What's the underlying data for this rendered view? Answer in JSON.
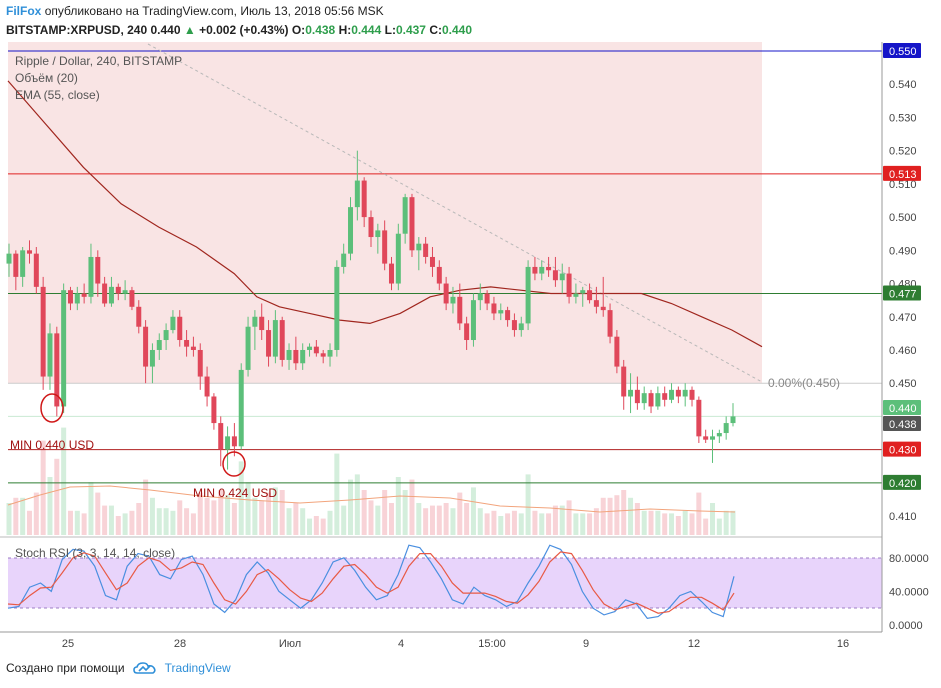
{
  "header": {
    "brand": "FilFox",
    "published": "опубликовано на TradingView.com, Июль 13, 2018 05:56 MSK",
    "symbol": "BITSTAMP:XRPUSD, 240",
    "last": "0.440",
    "change_arrow": "▲",
    "change": "+0.002 (+0.43%)",
    "o_label": "O:",
    "o": "0.438",
    "h_label": "H:",
    "h": "0.444",
    "l_label": "L:",
    "l": "0.437",
    "c_label": "C:",
    "c": "0.440"
  },
  "legend": {
    "title": "Ripple / Dollar, 240, BITSTAMP",
    "volume": "Объём (20)",
    "ema": "EMA (55, close)"
  },
  "annotations": {
    "min1": "MIN 0.440 USD",
    "min2": "MIN 0.424 USD",
    "fib": "0.00%(0.450)"
  },
  "price_badges": [
    {
      "text": "0.550",
      "value": 0.55,
      "color": "#1515c8"
    },
    {
      "text": "0.513",
      "value": 0.513,
      "color": "#e02020"
    },
    {
      "text": "0.477",
      "value": 0.477,
      "color": "#2e7d32"
    },
    {
      "text": "0.440",
      "value": 0.44,
      "color": "#5cbf7a"
    },
    {
      "text": "0.438",
      "value": 0.438,
      "color": "#555555"
    },
    {
      "text": "0.430",
      "value": 0.43,
      "color": "#e02020"
    },
    {
      "text": "0.420",
      "value": 0.42,
      "color": "#2e7d32"
    }
  ],
  "price_axis_ticks": [
    "0.540",
    "0.530",
    "0.520",
    "0.510",
    "0.500",
    "0.490",
    "0.480",
    "0.470",
    "0.460",
    "0.450",
    "0.410"
  ],
  "rsi": {
    "label": "Stoch RSI (3, 3, 14, 14, close)",
    "ticks": [
      "80.0000",
      "40.0000",
      "0.0000"
    ]
  },
  "time_axis": [
    "25",
    "28",
    "Июл",
    "4",
    "15:00",
    "9",
    "12",
    "16"
  ],
  "footer": {
    "created": "Создано при помощи",
    "tv": "TradingView",
    "logo_icon": "tradingview-cloud-icon"
  },
  "colors": {
    "up": "#5cbf7a",
    "down": "#e0475a",
    "ema": "#a0261e",
    "zone": "#f9e4e4",
    "rsi_band": "#e8d4fb",
    "rsi_k": "#4a8fe0",
    "rsi_d": "#e85a45"
  },
  "chart_data": {
    "type": "candlestick",
    "title": "Ripple / Dollar, 240, BITSTAMP",
    "ylim": [
      0.4,
      0.555
    ],
    "ohlc": [
      [
        0.486,
        0.492,
        0.482,
        0.489
      ],
      [
        0.489,
        0.49,
        0.478,
        0.482
      ],
      [
        0.482,
        0.491,
        0.479,
        0.49
      ],
      [
        0.49,
        0.493,
        0.486,
        0.489
      ],
      [
        0.489,
        0.491,
        0.477,
        0.479
      ],
      [
        0.479,
        0.482,
        0.448,
        0.452
      ],
      [
        0.452,
        0.468,
        0.448,
        0.465
      ],
      [
        0.465,
        0.467,
        0.44,
        0.443
      ],
      [
        0.443,
        0.48,
        0.441,
        0.478
      ],
      [
        0.478,
        0.479,
        0.472,
        0.474
      ],
      [
        0.474,
        0.479,
        0.472,
        0.477
      ],
      [
        0.477,
        0.48,
        0.474,
        0.476
      ],
      [
        0.476,
        0.492,
        0.474,
        0.488
      ],
      [
        0.488,
        0.49,
        0.476,
        0.48
      ],
      [
        0.48,
        0.482,
        0.473,
        0.474
      ],
      [
        0.474,
        0.482,
        0.473,
        0.479
      ],
      [
        0.479,
        0.48,
        0.475,
        0.477
      ],
      [
        0.477,
        0.481,
        0.475,
        0.478
      ],
      [
        0.478,
        0.479,
        0.472,
        0.473
      ],
      [
        0.473,
        0.475,
        0.465,
        0.467
      ],
      [
        0.467,
        0.469,
        0.45,
        0.455
      ],
      [
        0.455,
        0.462,
        0.45,
        0.46
      ],
      [
        0.46,
        0.465,
        0.457,
        0.463
      ],
      [
        0.463,
        0.468,
        0.46,
        0.466
      ],
      [
        0.466,
        0.472,
        0.465,
        0.47
      ],
      [
        0.47,
        0.472,
        0.461,
        0.463
      ],
      [
        0.463,
        0.466,
        0.458,
        0.461
      ],
      [
        0.461,
        0.464,
        0.458,
        0.46
      ],
      [
        0.46,
        0.462,
        0.448,
        0.452
      ],
      [
        0.452,
        0.455,
        0.443,
        0.446
      ],
      [
        0.446,
        0.447,
        0.436,
        0.438
      ],
      [
        0.438,
        0.44,
        0.425,
        0.43
      ],
      [
        0.43,
        0.437,
        0.424,
        0.434
      ],
      [
        0.434,
        0.438,
        0.428,
        0.431
      ],
      [
        0.431,
        0.456,
        0.43,
        0.454
      ],
      [
        0.454,
        0.47,
        0.452,
        0.467
      ],
      [
        0.467,
        0.472,
        0.46,
        0.47
      ],
      [
        0.47,
        0.474,
        0.463,
        0.466
      ],
      [
        0.466,
        0.469,
        0.455,
        0.458
      ],
      [
        0.458,
        0.472,
        0.456,
        0.469
      ],
      [
        0.469,
        0.47,
        0.455,
        0.457
      ],
      [
        0.457,
        0.462,
        0.454,
        0.46
      ],
      [
        0.46,
        0.464,
        0.454,
        0.456
      ],
      [
        0.456,
        0.462,
        0.454,
        0.46
      ],
      [
        0.46,
        0.462,
        0.458,
        0.461
      ],
      [
        0.461,
        0.463,
        0.458,
        0.459
      ],
      [
        0.459,
        0.46,
        0.456,
        0.458
      ],
      [
        0.458,
        0.462,
        0.455,
        0.46
      ],
      [
        0.46,
        0.487,
        0.458,
        0.485
      ],
      [
        0.485,
        0.492,
        0.483,
        0.489
      ],
      [
        0.489,
        0.506,
        0.487,
        0.503
      ],
      [
        0.503,
        0.52,
        0.499,
        0.511
      ],
      [
        0.511,
        0.512,
        0.497,
        0.5
      ],
      [
        0.5,
        0.502,
        0.491,
        0.494
      ],
      [
        0.494,
        0.498,
        0.489,
        0.496
      ],
      [
        0.496,
        0.499,
        0.484,
        0.486
      ],
      [
        0.486,
        0.488,
        0.478,
        0.48
      ],
      [
        0.48,
        0.498,
        0.478,
        0.495
      ],
      [
        0.495,
        0.507,
        0.492,
        0.506
      ],
      [
        0.506,
        0.507,
        0.488,
        0.49
      ],
      [
        0.49,
        0.494,
        0.484,
        0.492
      ],
      [
        0.492,
        0.494,
        0.486,
        0.488
      ],
      [
        0.488,
        0.491,
        0.482,
        0.485
      ],
      [
        0.485,
        0.487,
        0.478,
        0.48
      ],
      [
        0.48,
        0.482,
        0.472,
        0.474
      ],
      [
        0.474,
        0.479,
        0.471,
        0.476
      ],
      [
        0.476,
        0.48,
        0.466,
        0.468
      ],
      [
        0.468,
        0.47,
        0.46,
        0.463
      ],
      [
        0.463,
        0.477,
        0.461,
        0.475
      ],
      [
        0.475,
        0.48,
        0.472,
        0.477
      ],
      [
        0.477,
        0.478,
        0.472,
        0.474
      ],
      [
        0.474,
        0.476,
        0.469,
        0.471
      ],
      [
        0.471,
        0.474,
        0.469,
        0.472
      ],
      [
        0.472,
        0.473,
        0.467,
        0.469
      ],
      [
        0.469,
        0.471,
        0.464,
        0.466
      ],
      [
        0.466,
        0.47,
        0.464,
        0.468
      ],
      [
        0.468,
        0.487,
        0.466,
        0.485
      ],
      [
        0.485,
        0.488,
        0.481,
        0.483
      ],
      [
        0.483,
        0.487,
        0.481,
        0.485
      ],
      [
        0.485,
        0.488,
        0.482,
        0.484
      ],
      [
        0.484,
        0.488,
        0.479,
        0.481
      ],
      [
        0.481,
        0.486,
        0.477,
        0.483
      ],
      [
        0.483,
        0.485,
        0.474,
        0.476
      ],
      [
        0.476,
        0.48,
        0.474,
        0.477
      ],
      [
        0.477,
        0.479,
        0.473,
        0.478
      ],
      [
        0.478,
        0.48,
        0.474,
        0.475
      ],
      [
        0.475,
        0.479,
        0.471,
        0.473
      ],
      [
        0.473,
        0.482,
        0.47,
        0.472
      ],
      [
        0.472,
        0.474,
        0.462,
        0.464
      ],
      [
        0.464,
        0.466,
        0.453,
        0.455
      ],
      [
        0.455,
        0.457,
        0.442,
        0.446
      ],
      [
        0.446,
        0.453,
        0.441,
        0.448
      ],
      [
        0.448,
        0.452,
        0.442,
        0.444
      ],
      [
        0.444,
        0.449,
        0.442,
        0.447
      ],
      [
        0.447,
        0.448,
        0.441,
        0.443
      ],
      [
        0.443,
        0.449,
        0.442,
        0.447
      ],
      [
        0.447,
        0.449,
        0.443,
        0.445
      ],
      [
        0.445,
        0.45,
        0.444,
        0.448
      ],
      [
        0.448,
        0.449,
        0.444,
        0.446
      ],
      [
        0.446,
        0.45,
        0.443,
        0.448
      ],
      [
        0.448,
        0.449,
        0.443,
        0.445
      ],
      [
        0.445,
        0.446,
        0.432,
        0.434
      ],
      [
        0.434,
        0.436,
        0.432,
        0.433
      ],
      [
        0.433,
        0.436,
        0.426,
        0.434
      ],
      [
        0.434,
        0.436,
        0.432,
        0.435
      ],
      [
        0.435,
        0.44,
        0.433,
        0.438
      ],
      [
        0.438,
        0.444,
        0.437,
        0.44
      ]
    ],
    "ema": [
      [
        0,
        0.541
      ],
      [
        0.05,
        0.528
      ],
      [
        0.1,
        0.515
      ],
      [
        0.15,
        0.504
      ],
      [
        0.2,
        0.497
      ],
      [
        0.25,
        0.491
      ],
      [
        0.3,
        0.483
      ],
      [
        0.33,
        0.476
      ],
      [
        0.36,
        0.473
      ],
      [
        0.4,
        0.471
      ],
      [
        0.44,
        0.469
      ],
      [
        0.48,
        0.468
      ],
      [
        0.52,
        0.471
      ],
      [
        0.56,
        0.476
      ],
      [
        0.6,
        0.478
      ],
      [
        0.64,
        0.479
      ],
      [
        0.68,
        0.478
      ],
      [
        0.72,
        0.477
      ],
      [
        0.76,
        0.477
      ],
      [
        0.8,
        0.477
      ],
      [
        0.84,
        0.477
      ],
      [
        0.88,
        0.474
      ],
      [
        0.92,
        0.47
      ],
      [
        0.96,
        0.466
      ],
      [
        1.0,
        0.461
      ]
    ],
    "trendline": [
      [
        0.19,
        0.552
      ],
      [
        1.0,
        0.451
      ]
    ],
    "horizontal_levels": [
      0.55,
      0.513,
      0.477,
      0.45,
      0.44,
      0.43,
      0.42
    ],
    "rsi_k": [
      20,
      22,
      45,
      50,
      40,
      78,
      90,
      88,
      70,
      35,
      30,
      70,
      85,
      82,
      60,
      55,
      78,
      82,
      60,
      25,
      15,
      30,
      60,
      75,
      62,
      40,
      30,
      20,
      30,
      50,
      75,
      80,
      65,
      45,
      30,
      35,
      60,
      95,
      92,
      75,
      55,
      30,
      25,
      45,
      35,
      30,
      22,
      28,
      50,
      70,
      95,
      90,
      72,
      40,
      20,
      12,
      16,
      30,
      25,
      8,
      10,
      20,
      35,
      40,
      28,
      15,
      10,
      58
    ],
    "rsi_d": [
      25,
      24,
      35,
      44,
      45,
      62,
      80,
      86,
      82,
      62,
      42,
      50,
      70,
      80,
      76,
      65,
      68,
      75,
      72,
      50,
      30,
      25,
      40,
      60,
      66,
      55,
      42,
      32,
      28,
      38,
      55,
      70,
      72,
      60,
      45,
      38,
      45,
      70,
      85,
      85,
      70,
      50,
      38,
      38,
      38,
      34,
      28,
      26,
      36,
      52,
      75,
      87,
      85,
      65,
      42,
      25,
      18,
      22,
      26,
      20,
      14,
      16,
      25,
      33,
      33,
      26,
      18,
      38
    ]
  }
}
